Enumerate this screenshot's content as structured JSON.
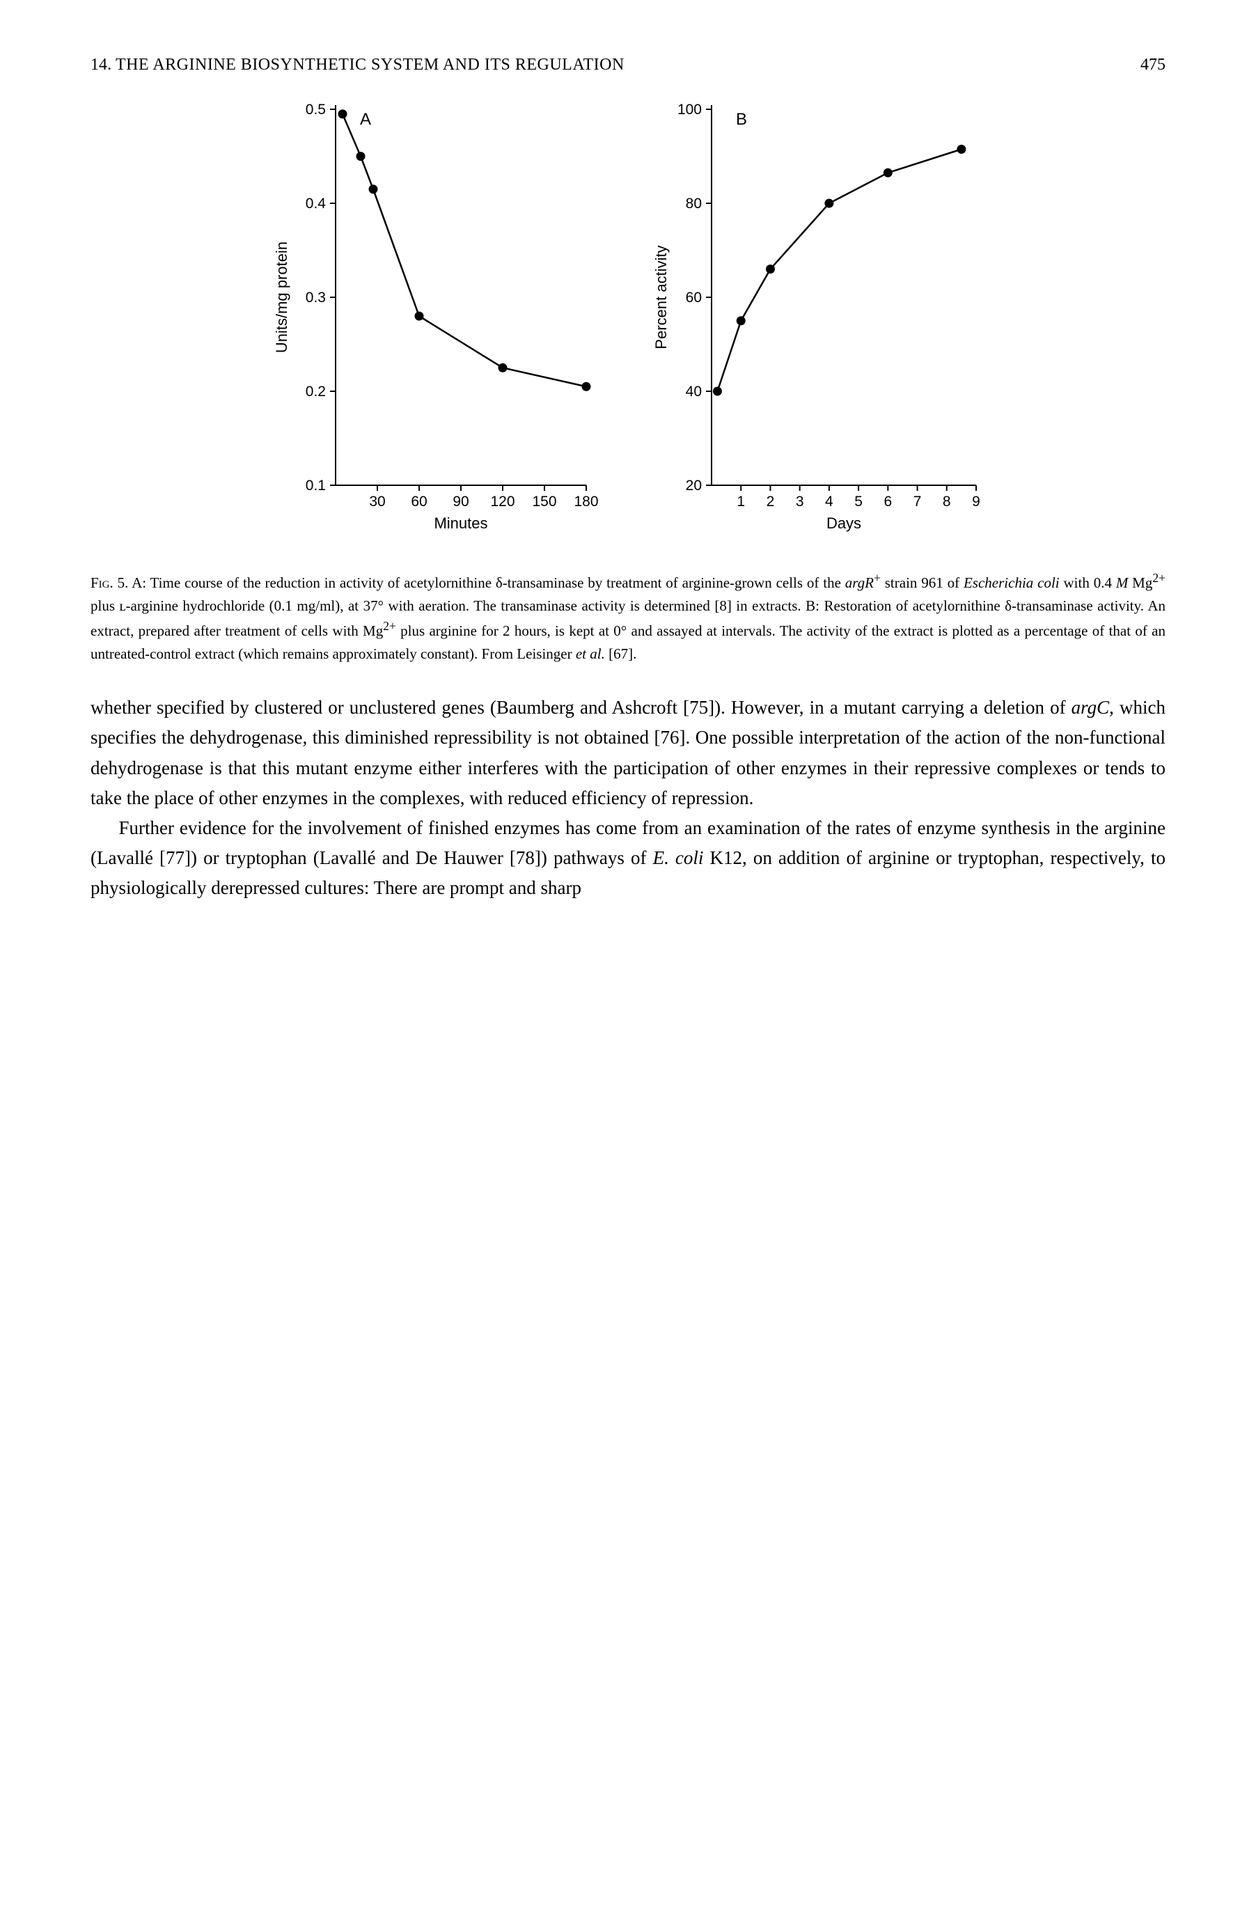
{
  "header": {
    "chapter_num": "14.",
    "chapter_title": "THE ARGININE BIOSYNTHETIC SYSTEM AND ITS REGULATION",
    "page_num": "475"
  },
  "chartA": {
    "type": "line",
    "panel_label": "A",
    "xlabel": "Minutes",
    "ylabel": "Units/mg protein",
    "xlim": [
      0,
      180
    ],
    "ylim": [
      0.1,
      0.5
    ],
    "xticks": [
      30,
      60,
      90,
      120,
      150,
      180
    ],
    "yticks": [
      0.1,
      0.2,
      0.3,
      0.4,
      0.5
    ],
    "points": [
      {
        "x": 5,
        "y": 0.495
      },
      {
        "x": 18,
        "y": 0.45
      },
      {
        "x": 27,
        "y": 0.415
      },
      {
        "x": 60,
        "y": 0.28
      },
      {
        "x": 120,
        "y": 0.225
      },
      {
        "x": 180,
        "y": 0.205
      }
    ],
    "marker_radius": 6.5,
    "line_color": "#000000",
    "background_color": "#ffffff",
    "label_fontsize": 22
  },
  "chartB": {
    "type": "line",
    "panel_label": "B",
    "xlabel": "Days",
    "ylabel": "Percent activity",
    "xlim": [
      0,
      9
    ],
    "ylim": [
      20,
      100
    ],
    "xticks": [
      1,
      2,
      3,
      4,
      5,
      6,
      7,
      8,
      9
    ],
    "yticks": [
      20,
      40,
      60,
      80,
      100
    ],
    "points": [
      {
        "x": 0.2,
        "y": 40
      },
      {
        "x": 1,
        "y": 55
      },
      {
        "x": 2,
        "y": 66
      },
      {
        "x": 4,
        "y": 80
      },
      {
        "x": 6,
        "y": 86.5
      },
      {
        "x": 8.5,
        "y": 91.5
      }
    ],
    "marker_radius": 6.5,
    "line_color": "#000000",
    "background_color": "#ffffff",
    "label_fontsize": 22
  },
  "caption": {
    "fig_label": "Fig. 5.",
    "text_a": " A: Time course of the reduction in activity of acetylornithine δ-transaminase by treatment of arginine-grown cells of the ",
    "argR": "argR",
    "super_plus": "+",
    "text_b": " strain 961 of ",
    "ecoli": "Escherichia coli",
    "text_c": " with 0.4 ",
    "M": "M",
    "text_d": " Mg",
    "super_2plus_1": "2+",
    "text_e": " plus ʟ-arginine hydrochloride (0.1 mg/ml), at 37° with aeration. The transaminase activity is determined [8] in extracts. B: Restoration of acetylornithine δ-transaminase activity. An extract, prepared after treatment of cells with Mg",
    "super_2plus_2": "2+",
    "text_f": " plus arginine for 2 hours, is kept at 0° and assayed at intervals. The activity of the extract is plotted as a percentage of that of an untreated-control extract (which remains approximately constant). From Leisinger ",
    "etal": "et al.",
    "text_g": " [67]."
  },
  "body": {
    "p1_a": "whether specified by clustered or unclustered genes (Baumberg and Ashcroft [75]). However, in a mutant carrying a deletion of ",
    "p1_argC": "argC",
    "p1_b": ", which specifies the dehydrogenase, this diminished repressibility is not obtained [76]. One possible interpretation of the action of the non-functional dehydrogenase is that this mutant enzyme either interferes with the participation of other enzymes in their repressive complexes or tends to take the place of other enzymes in the complexes, with reduced efficiency of repression.",
    "p2_a": "Further evidence for the involvement of finished enzymes has come from an examination of the rates of enzyme synthesis in the arginine (Lavallé [77]) or tryptophan (Lavallé and De Hauwer [78]) pathways of ",
    "p2_ecoli": "E. coli",
    "p2_b": " K12, on addition of arginine or tryptophan, respectively, to physiologically derepressed cultures: There are prompt and sharp"
  }
}
